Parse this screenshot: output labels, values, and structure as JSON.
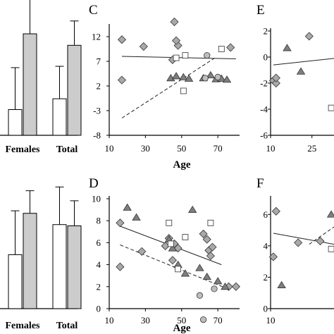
{
  "chart_data": [
    {
      "panel": "",
      "type": "bar",
      "categories": [
        "Females",
        "Total"
      ],
      "series": [
        {
          "color": "#ffffff",
          "values": [
            3.8,
            5.4
          ],
          "errors": [
            6.2,
            4.8
          ]
        },
        {
          "color": "#cccccc",
          "values": [
            15.0,
            13.3
          ],
          "errors": [
            5.6,
            3.6
          ]
        }
      ],
      "ylim": [
        0,
        20
      ]
    },
    {
      "panel": "",
      "type": "bar",
      "categories": [
        "Females",
        "Total"
      ],
      "series": [
        {
          "color": "#ffffff",
          "values": [
            4.3,
            6.7
          ],
          "errors": [
            3.5,
            3.0
          ]
        },
        {
          "color": "#cccccc",
          "values": [
            7.6,
            6.6
          ],
          "errors": [
            1.8,
            2.0
          ]
        }
      ],
      "ylim": [
        0,
        10
      ]
    },
    {
      "panel": "C",
      "type": "scatter",
      "xlabel": "Age",
      "xlim": [
        10,
        82
      ],
      "ylim": [
        -8,
        14
      ],
      "xticks": [
        10,
        30,
        50,
        70
      ],
      "yticks": [
        -8,
        -3,
        2,
        7,
        12
      ],
      "points": [
        {
          "shape": "diamond",
          "x": 17,
          "y": 11.4
        },
        {
          "shape": "diamond",
          "x": 17,
          "y": 3.2
        },
        {
          "shape": "diamond",
          "x": 29,
          "y": 10.0
        },
        {
          "shape": "diamond",
          "x": 45,
          "y": 7.3
        },
        {
          "shape": "diamond",
          "x": 46,
          "y": 15.0
        },
        {
          "shape": "diamond",
          "x": 48,
          "y": 10.2
        },
        {
          "shape": "diamond",
          "x": 47,
          "y": 11.2
        },
        {
          "shape": "diamond",
          "x": 77,
          "y": 9.8
        },
        {
          "shape": "triangle",
          "x": 44,
          "y": 3.6
        },
        {
          "shape": "triangle",
          "x": 47,
          "y": 4.0
        },
        {
          "shape": "triangle",
          "x": 51,
          "y": 3.8
        },
        {
          "shape": "triangle",
          "x": 54,
          "y": 3.5
        },
        {
          "shape": "triangle",
          "x": 62,
          "y": 3.6
        },
        {
          "shape": "triangle",
          "x": 66,
          "y": 4.2
        },
        {
          "shape": "triangle",
          "x": 69,
          "y": 3.4
        },
        {
          "shape": "triangle",
          "x": 72,
          "y": 3.5
        },
        {
          "shape": "triangle",
          "x": 75,
          "y": 3.3
        },
        {
          "shape": "square",
          "x": 47,
          "y": 7.7
        },
        {
          "shape": "square",
          "x": 52,
          "y": 8.2
        },
        {
          "shape": "square",
          "x": 51,
          "y": 1.0
        },
        {
          "shape": "square",
          "x": 72,
          "y": 9.5
        },
        {
          "shape": "circle",
          "x": 64,
          "y": 8.2
        },
        {
          "shape": "circle",
          "x": 63,
          "y": 3.6
        },
        {
          "shape": "circle",
          "x": 70,
          "y": 3.8
        }
      ],
      "lines": [
        {
          "style": "solid",
          "x": [
            17,
            80
          ],
          "y": [
            8.0,
            7.5
          ]
        },
        {
          "style": "dashed",
          "x": [
            17,
            68
          ],
          "y": [
            -4.5,
            7.6
          ]
        }
      ]
    },
    {
      "panel": "D",
      "type": "scatter",
      "xlabel": "Age",
      "xlim": [
        10,
        82
      ],
      "ylim": [
        0,
        10
      ],
      "xticks": [
        10,
        30,
        50,
        70
      ],
      "yticks": [
        0,
        2,
        4,
        6,
        8,
        10
      ],
      "points": [
        {
          "shape": "diamond",
          "x": 16,
          "y": 7.8
        },
        {
          "shape": "diamond",
          "x": 16,
          "y": 3.8
        },
        {
          "shape": "diamond",
          "x": 28,
          "y": 5.2
        },
        {
          "shape": "diamond",
          "x": 41,
          "y": 5.7
        },
        {
          "shape": "diamond",
          "x": 43,
          "y": 6.4
        },
        {
          "shape": "diamond",
          "x": 46,
          "y": 5.9
        },
        {
          "shape": "diamond",
          "x": 48,
          "y": 5.5
        },
        {
          "shape": "diamond",
          "x": 45,
          "y": 4.4
        },
        {
          "shape": "diamond",
          "x": 62,
          "y": 6.8
        },
        {
          "shape": "diamond",
          "x": 64,
          "y": 6.3
        },
        {
          "shape": "diamond",
          "x": 65,
          "y": 5.3
        },
        {
          "shape": "diamond",
          "x": 66,
          "y": 4.8
        },
        {
          "shape": "diamond",
          "x": 67,
          "y": 5.6
        },
        {
          "shape": "diamond",
          "x": 76,
          "y": 2.0
        },
        {
          "shape": "diamond",
          "x": 80,
          "y": 2.0
        },
        {
          "shape": "triangle",
          "x": 20,
          "y": 9.2
        },
        {
          "shape": "triangle",
          "x": 25,
          "y": 8.3
        },
        {
          "shape": "triangle",
          "x": 43,
          "y": 6.3
        },
        {
          "shape": "triangle",
          "x": 45,
          "y": 5.5
        },
        {
          "shape": "triangle",
          "x": 48,
          "y": 4.0
        },
        {
          "shape": "triangle",
          "x": 52,
          "y": 3.2
        },
        {
          "shape": "triangle",
          "x": 56,
          "y": 9.0
        },
        {
          "shape": "triangle",
          "x": 60,
          "y": 3.7
        },
        {
          "shape": "triangle",
          "x": 64,
          "y": 2.9
        },
        {
          "shape": "triangle",
          "x": 70,
          "y": 2.5
        },
        {
          "shape": "triangle",
          "x": 74,
          "y": 2.0
        },
        {
          "shape": "square",
          "x": 43,
          "y": 7.8
        },
        {
          "shape": "square",
          "x": 44,
          "y": 5.9
        },
        {
          "shape": "square",
          "x": 52,
          "y": 6.5
        },
        {
          "shape": "square",
          "x": 66,
          "y": 7.8
        },
        {
          "shape": "square",
          "x": 48,
          "y": 3.6
        },
        {
          "shape": "circle",
          "x": 60,
          "y": 1.2
        },
        {
          "shape": "circle",
          "x": 62,
          "y": -1.0
        },
        {
          "shape": "circle",
          "x": 68,
          "y": 1.8
        }
      ],
      "lines": [
        {
          "style": "solid",
          "x": [
            16,
            72
          ],
          "y": [
            7.5,
            4.0
          ]
        },
        {
          "style": "dashed",
          "x": [
            16,
            74
          ],
          "y": [
            5.8,
            1.9
          ]
        }
      ]
    },
    {
      "panel": "E",
      "type": "scatter",
      "xlim": [
        10,
        33
      ],
      "ylim": [
        -6,
        2
      ],
      "xticks": [
        10,
        25
      ],
      "yticks": [
        -6,
        -4,
        -2,
        0,
        2
      ],
      "points": [
        {
          "shape": "diamond",
          "x": 11,
          "y": -1.8
        },
        {
          "shape": "diamond",
          "x": 12,
          "y": -2.0
        },
        {
          "shape": "diamond",
          "x": 12,
          "y": -1.6
        },
        {
          "shape": "diamond",
          "x": 24,
          "y": 1.6
        },
        {
          "shape": "triangle",
          "x": 16,
          "y": 0.7
        },
        {
          "shape": "triangle",
          "x": 21,
          "y": -1.1
        },
        {
          "shape": "square",
          "x": 32,
          "y": -3.9
        }
      ],
      "lines": [
        {
          "style": "solid",
          "x": [
            11,
            33
          ],
          "y": [
            -0.6,
            -0.1
          ]
        }
      ]
    },
    {
      "panel": "F",
      "type": "scatter",
      "xlim": [
        10,
        33
      ],
      "ylim": [
        0,
        7
      ],
      "xticks": [
        10
      ],
      "yticks": [
        0,
        2,
        4,
        6
      ],
      "points": [
        {
          "shape": "diamond",
          "x": 12,
          "y": 6.2
        },
        {
          "shape": "diamond",
          "x": 11,
          "y": 3.3
        },
        {
          "shape": "triangle",
          "x": 14,
          "y": 1.5
        },
        {
          "shape": "diamond",
          "x": 20,
          "y": 4.2
        },
        {
          "shape": "diamond",
          "x": 28,
          "y": 4.3
        },
        {
          "shape": "triangle",
          "x": 32,
          "y": 6.0
        },
        {
          "shape": "square",
          "x": 32,
          "y": 3.8
        }
      ],
      "lines": [
        {
          "style": "solid",
          "x": [
            11,
            33
          ],
          "y": [
            4.8,
            4.1
          ]
        },
        {
          "style": "dashed",
          "x": [
            24,
            33
          ],
          "y": [
            4.1,
            5.2
          ]
        }
      ]
    }
  ]
}
